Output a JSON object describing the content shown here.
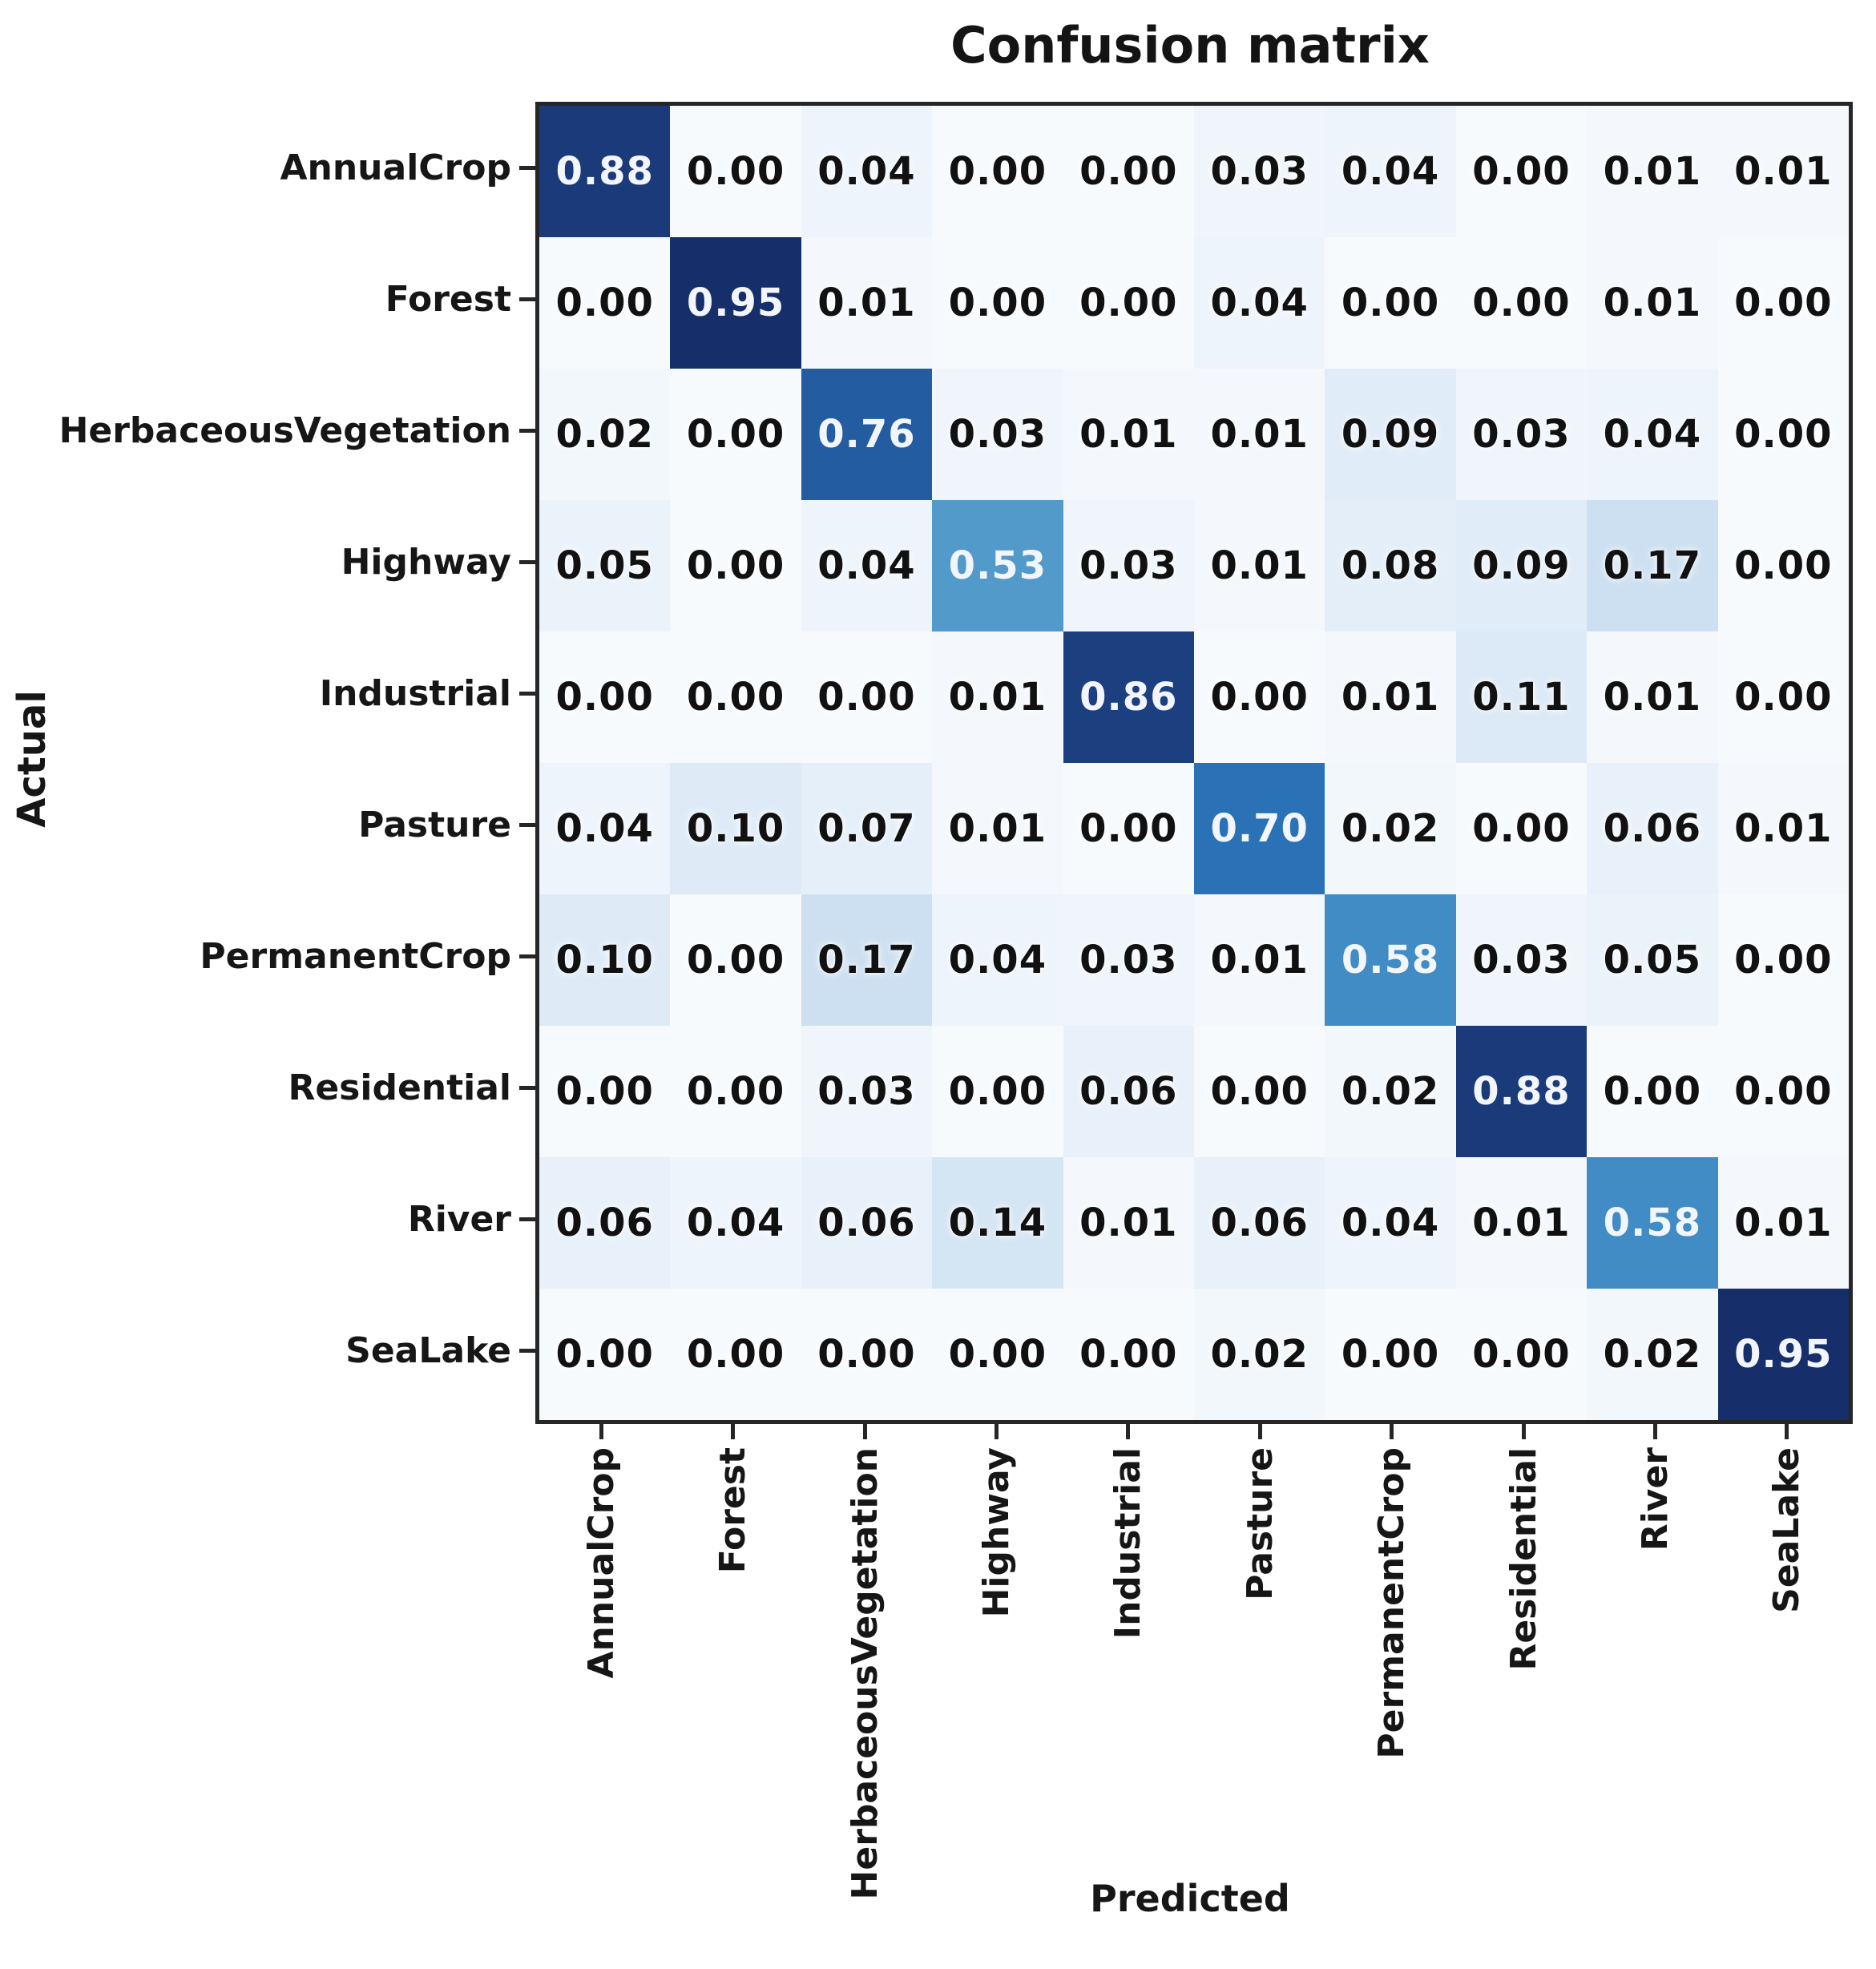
{
  "chart_data": {
    "type": "heatmap",
    "title": "Confusion matrix",
    "xlabel": "Predicted",
    "ylabel": "Actual",
    "categories": [
      "AnnualCrop",
      "Forest",
      "HerbaceousVegetation",
      "Highway",
      "Industrial",
      "Pasture",
      "PermanentCrop",
      "Residential",
      "River",
      "SeaLake"
    ],
    "matrix": [
      [
        0.88,
        0.0,
        0.04,
        0.0,
        0.0,
        0.03,
        0.04,
        0.0,
        0.01,
        0.01
      ],
      [
        0.0,
        0.95,
        0.01,
        0.0,
        0.0,
        0.04,
        0.0,
        0.0,
        0.01,
        0.0
      ],
      [
        0.02,
        0.0,
        0.76,
        0.03,
        0.01,
        0.01,
        0.09,
        0.03,
        0.04,
        0.0
      ],
      [
        0.05,
        0.0,
        0.04,
        0.53,
        0.03,
        0.01,
        0.08,
        0.09,
        0.17,
        0.0
      ],
      [
        0.0,
        0.0,
        0.0,
        0.01,
        0.86,
        0.0,
        0.01,
        0.11,
        0.01,
        0.0
      ],
      [
        0.04,
        0.1,
        0.07,
        0.01,
        0.0,
        0.7,
        0.02,
        0.0,
        0.06,
        0.01
      ],
      [
        0.1,
        0.0,
        0.17,
        0.04,
        0.03,
        0.01,
        0.58,
        0.03,
        0.05,
        0.0
      ],
      [
        0.0,
        0.0,
        0.03,
        0.0,
        0.06,
        0.0,
        0.02,
        0.88,
        0.0,
        0.0
      ],
      [
        0.06,
        0.04,
        0.06,
        0.14,
        0.01,
        0.06,
        0.04,
        0.01,
        0.58,
        0.01
      ],
      [
        0.0,
        0.0,
        0.0,
        0.0,
        0.0,
        0.02,
        0.0,
        0.0,
        0.02,
        0.95
      ]
    ],
    "value_range": [
      0,
      1
    ],
    "value_format": "0.00",
    "colormap": "Blues",
    "legend_position": "none",
    "grid": false,
    "colors": {
      "min_cell": "#f7fafd",
      "max_cell": "#12275e",
      "frame": "#262626",
      "dark_value_text": "#111111",
      "light_value_text": "#f2f6fb"
    }
  }
}
